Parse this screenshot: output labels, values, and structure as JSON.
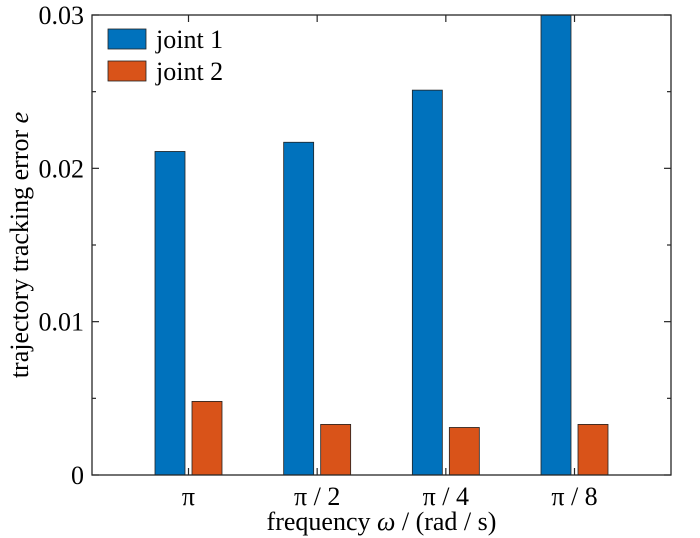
{
  "chart_data": {
    "type": "bar",
    "categories": [
      "π",
      "π / 2",
      "π / 4",
      "π / 8"
    ],
    "series": [
      {
        "name": "joint 1",
        "color": "#0072BD",
        "values": [
          0.0211,
          0.0217,
          0.0251,
          0.03
        ]
      },
      {
        "name": "joint 2",
        "color": "#D95319",
        "values": [
          0.0048,
          0.0033,
          0.0031,
          0.0033
        ]
      }
    ],
    "ylim": [
      0,
      0.03
    ],
    "yticks": [
      0,
      0.01,
      0.02,
      0.03
    ],
    "ytick_labels": [
      "0",
      "0.01",
      "0.02",
      "0.03"
    ],
    "xlabel_prefix": "frequency ",
    "xlabel_symbol": "ω",
    "xlabel_suffix": " / (rad / s)",
    "ylabel_prefix": "trajectory tracking error ",
    "ylabel_symbol": "e",
    "legend_position": "top-left",
    "grid": false
  }
}
